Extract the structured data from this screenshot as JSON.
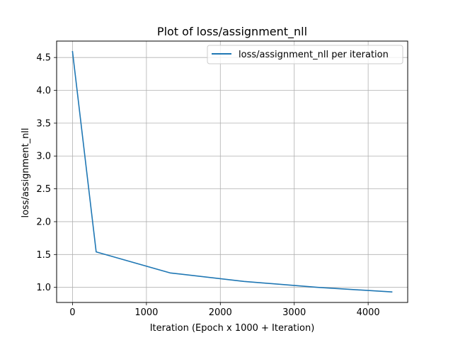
{
  "chart_data": {
    "type": "line",
    "title": "Plot of loss/assignment_nll",
    "xlabel": "Iteration (Epoch x 1000 + Iteration)",
    "ylabel": "loss/assignment_nll",
    "xlim": [
      -215,
      4535
    ],
    "ylim": [
      0.77,
      4.75
    ],
    "xticks": [
      0,
      1000,
      2000,
      3000,
      4000
    ],
    "yticks": [
      1.0,
      1.5,
      2.0,
      2.5,
      3.0,
      3.5,
      4.0,
      4.5
    ],
    "xtick_labels": [
      "0",
      "1000",
      "2000",
      "3000",
      "4000"
    ],
    "ytick_labels": [
      "1.0",
      "1.5",
      "2.0",
      "2.5",
      "3.0",
      "3.5",
      "4.0",
      "4.5"
    ],
    "grid": true,
    "legend_position": "top-right",
    "series": [
      {
        "name": "loss/assignment_nll per iteration",
        "color": "#1f77b4",
        "x": [
          0,
          320,
          1320,
          2320,
          3320,
          4320
        ],
        "y": [
          4.59,
          1.54,
          1.22,
          1.09,
          1.0,
          0.93
        ]
      }
    ]
  }
}
